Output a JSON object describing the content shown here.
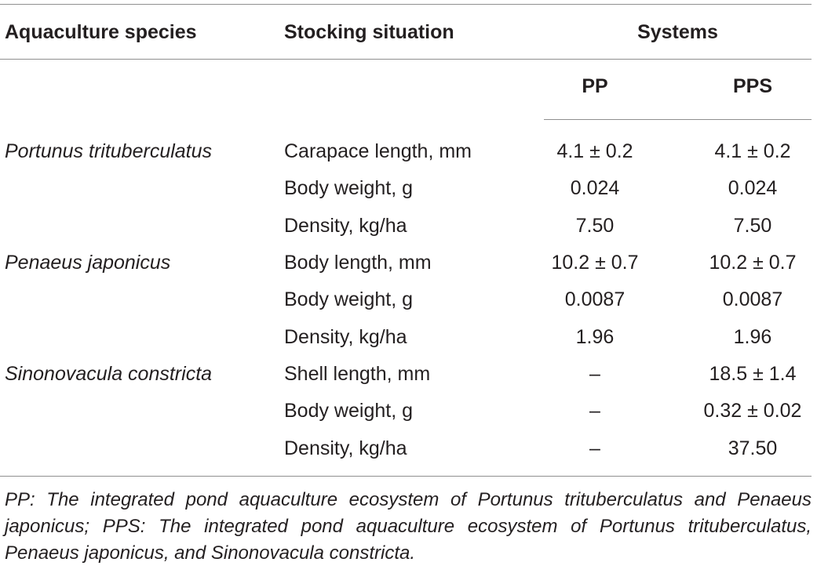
{
  "header": {
    "species": "Aquaculture species",
    "stocking": "Stocking situation",
    "systems": "Systems",
    "pp": "PP",
    "pps": "PPS"
  },
  "rows": [
    {
      "species": "Portunus trituberculatus",
      "parameter": "Carapace length, mm",
      "pp": "4.1 ± 0.2",
      "pps": "4.1 ± 0.2"
    },
    {
      "species": "",
      "parameter": "Body weight, g",
      "pp": "0.024",
      "pps": "0.024"
    },
    {
      "species": "",
      "parameter": "Density, kg/ha",
      "pp": "7.50",
      "pps": "7.50"
    },
    {
      "species": "Penaeus japonicus",
      "parameter": "Body length, mm",
      "pp": "10.2 ± 0.7",
      "pps": "10.2 ± 0.7"
    },
    {
      "species": "",
      "parameter": "Body weight, g",
      "pp": "0.0087",
      "pps": "0.0087"
    },
    {
      "species": "",
      "parameter": "Density, kg/ha",
      "pp": "1.96",
      "pps": "1.96"
    },
    {
      "species": "Sinonovacula constricta",
      "parameter": "Shell length, mm",
      "pp": "–",
      "pps": "18.5 ± 1.4"
    },
    {
      "species": "",
      "parameter": "Body weight, g",
      "pp": "–",
      "pps": "0.32 ± 0.02"
    },
    {
      "species": "",
      "parameter": "Density, kg/ha",
      "pp": "–",
      "pps": "37.50"
    }
  ],
  "footnote": "PP: The integrated pond aquaculture ecosystem of Portunus trituberculatus and Penaeus japonicus; PPS: The integrated pond aquaculture ecosystem of Portunus trituberculatus, Penaeus japonicus, and Sinonovacula constricta."
}
